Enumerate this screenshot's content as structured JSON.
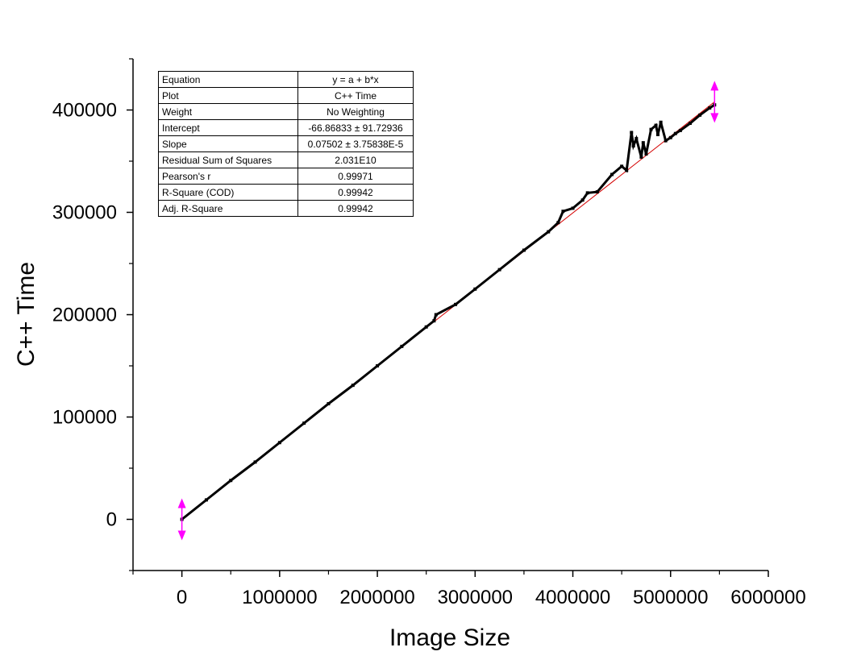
{
  "chart_data": {
    "type": "scatter",
    "xlabel": "Image Size",
    "ylabel": "C++ Time",
    "xlim": [
      -500000,
      6000000
    ],
    "ylim": [
      -50000,
      450000
    ],
    "xticks": [
      "0",
      "1000000",
      "2000000",
      "3000000",
      "4000000",
      "5000000",
      "6000000"
    ],
    "xtick_values": [
      0,
      1000000,
      2000000,
      3000000,
      4000000,
      5000000,
      6000000
    ],
    "yticks": [
      "0",
      "100000",
      "200000",
      "300000",
      "400000"
    ],
    "ytick_values": [
      0,
      100000,
      200000,
      300000,
      400000
    ],
    "grid": false,
    "series": [
      {
        "marker_color": "#000000",
        "x": [
          0,
          250000,
          500000,
          750000,
          1000000,
          1250000,
          1500000,
          1750000,
          2000000,
          2250000,
          2500000,
          2580000,
          2600000,
          2800000,
          3000000,
          3250000,
          3500000,
          3750000,
          3850000,
          3900000,
          4000000,
          4100000,
          4150000,
          4250000,
          4400000,
          4500000,
          4550000,
          4600000,
          4620000,
          4650000,
          4700000,
          4720000,
          4750000,
          4800000,
          4850000,
          4870000,
          4900000,
          4950000,
          5000000,
          5050000,
          5100000,
          5200000,
          5300000,
          5400000,
          5450000
        ],
        "y": [
          0,
          19000,
          38000,
          56000,
          75000,
          94000,
          113000,
          131000,
          150000,
          169000,
          188000,
          194000,
          200000,
          210000,
          225000,
          244000,
          263000,
          281000,
          290000,
          301000,
          304000,
          312000,
          319000,
          320000,
          337000,
          345000,
          341000,
          378000,
          365000,
          372000,
          354000,
          368000,
          357000,
          381000,
          385000,
          376000,
          388000,
          370000,
          373000,
          377000,
          380000,
          387000,
          395000,
          402000,
          405000
        ]
      }
    ],
    "fit": {
      "color": "#d40000",
      "x": [
        0,
        5450000
      ],
      "y": [
        0,
        408000
      ]
    },
    "markers_color": "#ff00ff"
  },
  "fit_table": [
    {
      "label": "Equation",
      "value": "y = a + b*x"
    },
    {
      "label": "Plot",
      "value": "C++ Time"
    },
    {
      "label": "Weight",
      "value": "No Weighting"
    },
    {
      "label": "Intercept",
      "value": "-66.86833 ± 91.72936"
    },
    {
      "label": "Slope",
      "value": "0.07502 ± 3.75838E-5"
    },
    {
      "label": "Residual Sum of Squares",
      "value": "2.031E10"
    },
    {
      "label": "Pearson's r",
      "value": "0.99971"
    },
    {
      "label": "R-Square (COD)",
      "value": "0.99942"
    },
    {
      "label": "Adj. R-Square",
      "value": "0.99942"
    }
  ]
}
